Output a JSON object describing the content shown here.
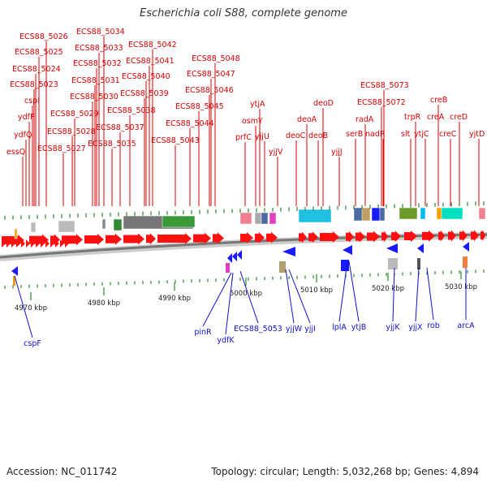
{
  "title": "Escherichia coli S88, complete genome",
  "footer": {
    "accession": "Accession: NC_011742",
    "stats": "Topology: circular; Length: 5,032,268 bp; Genes: 4,894"
  },
  "colors": {
    "top_label": "#d40000",
    "bottom_label": "#1010cc",
    "forward_arrow": "#ff1010",
    "reverse_arrow": "#1a1aff",
    "backbone": "#777777",
    "tick": "#2a8a2a",
    "kbp_text": "#222222"
  },
  "top_labels": [
    "ECS88_5034",
    "ECS88_5026",
    "ECS88_5042",
    "ECS88_5033",
    "ECS88_5025",
    "ECS88_5041",
    "ECS88_5032",
    "ECS88_5048",
    "ECS88_5024",
    "ECS88_5040",
    "ECS88_5047",
    "ECS88_5031",
    "ECS88_5023",
    "ECS88_5039",
    "ECS88_5046",
    "ECS88_5073",
    "cspI",
    "ECS88_5030",
    "ytjA",
    "deoD",
    "creB",
    "ECS88_5072",
    "ECS88_5045",
    "ECS88_5038",
    "ydfP",
    "ECS88_5029",
    "osmY",
    "deoA",
    "radA",
    "trpR",
    "creA",
    "creD",
    "ydfQ",
    "ECS88_5037",
    "ECS88_5044",
    "yjjU",
    "ECS88_5028",
    "prfC",
    "deoC",
    "deoB",
    "serB",
    "nadR",
    "slt",
    "ytjC",
    "creC",
    "yjtD",
    "ECS88_5035",
    "ECS88_5043",
    "essQ",
    "ECS88_5027",
    "yjjV",
    "yjjJ"
  ],
  "bottom_labels": [
    "cspF",
    "pinR",
    "ydfK",
    "ECS88_5053",
    "yjjW",
    "yjjI",
    "lplA",
    "ytjB",
    "yjjK",
    "yjjX",
    "rob",
    "arcA"
  ],
  "kbp_labels": [
    "4970 kbp",
    "4980 kbp",
    "4990 kbp",
    "5000 kbp",
    "5010 kbp",
    "5020 kbp",
    "5030 kbp"
  ]
}
